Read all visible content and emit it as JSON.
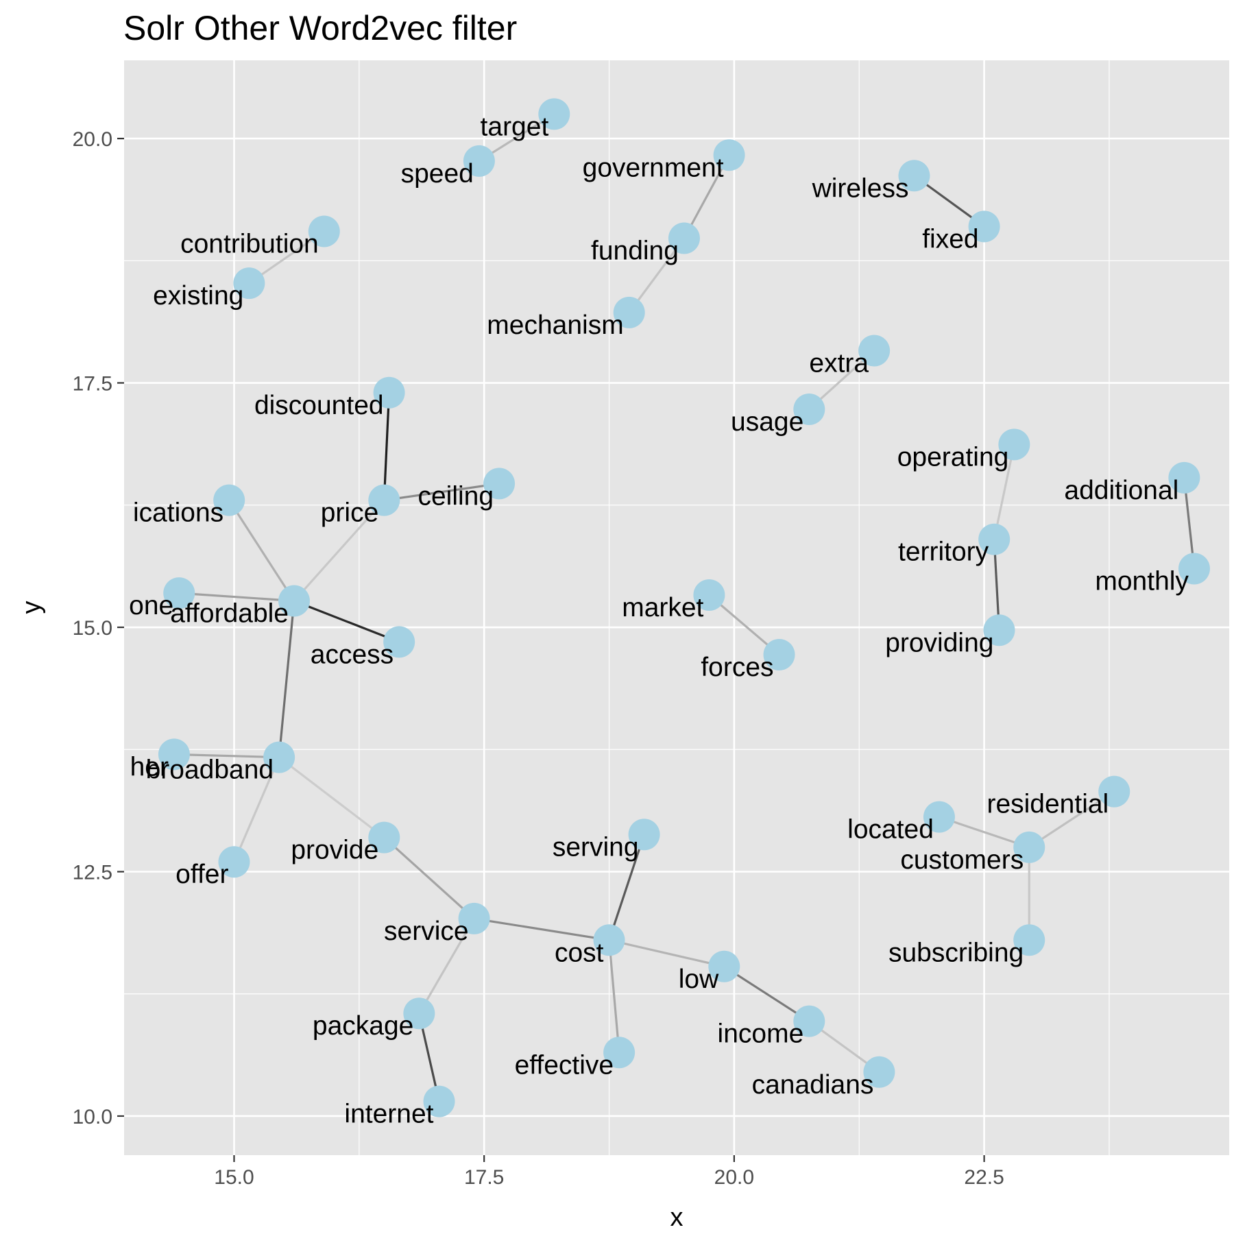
{
  "chart_data": {
    "type": "network",
    "title": "Solr Other Word2vec filter",
    "xlabel": "x",
    "ylabel": "y",
    "xlim": [
      13.9,
      24.95
    ],
    "ylim": [
      9.6,
      20.8
    ],
    "x_ticks": [
      "15.0",
      "17.5",
      "20.0",
      "22.5"
    ],
    "y_ticks": [
      "10.0",
      "12.5",
      "15.0",
      "17.5",
      "20.0"
    ],
    "grid": true,
    "colors": {
      "panel": "#e5e5e5",
      "grid": "#ffffff",
      "node": "#a4d1e3",
      "text": "#000000",
      "tick": "#4d4d4d"
    },
    "nodes": [
      {
        "label": "target",
        "x": 18.2,
        "y": 20.25
      },
      {
        "label": "speed",
        "x": 17.45,
        "y": 19.77
      },
      {
        "label": "government",
        "x": 19.95,
        "y": 19.83
      },
      {
        "label": "wireless",
        "x": 21.8,
        "y": 19.62
      },
      {
        "label": "fixed",
        "x": 22.5,
        "y": 19.1
      },
      {
        "label": "contribution",
        "x": 15.9,
        "y": 19.05
      },
      {
        "label": "funding",
        "x": 19.5,
        "y": 18.98
      },
      {
        "label": "existing",
        "x": 15.15,
        "y": 18.52
      },
      {
        "label": "mechanism",
        "x": 18.95,
        "y": 18.22
      },
      {
        "label": "extra",
        "x": 21.4,
        "y": 17.83
      },
      {
        "label": "discounted",
        "x": 16.55,
        "y": 17.4
      },
      {
        "label": "usage",
        "x": 20.75,
        "y": 17.23
      },
      {
        "label": "operating",
        "x": 22.8,
        "y": 16.87
      },
      {
        "label": "additional",
        "x": 24.5,
        "y": 16.53
      },
      {
        "label": "ceiling",
        "x": 17.65,
        "y": 16.47
      },
      {
        "label": "price",
        "x": 16.5,
        "y": 16.3
      },
      {
        "label": "ications",
        "x": 14.95,
        "y": 16.3
      },
      {
        "label": "territory",
        "x": 22.6,
        "y": 15.9
      },
      {
        "label": "monthly",
        "x": 24.6,
        "y": 15.6
      },
      {
        "label": "one",
        "x": 14.45,
        "y": 15.35
      },
      {
        "label": "market",
        "x": 19.75,
        "y": 15.33
      },
      {
        "label": "affordable",
        "x": 15.6,
        "y": 15.27
      },
      {
        "label": "providing",
        "x": 22.65,
        "y": 14.97
      },
      {
        "label": "access",
        "x": 16.65,
        "y": 14.85
      },
      {
        "label": "forces",
        "x": 20.45,
        "y": 14.72
      },
      {
        "label": "her",
        "x": 14.4,
        "y": 13.7
      },
      {
        "label": "broadband",
        "x": 15.45,
        "y": 13.67
      },
      {
        "label": "residential",
        "x": 23.8,
        "y": 13.32
      },
      {
        "label": "located",
        "x": 22.05,
        "y": 13.06
      },
      {
        "label": "serving",
        "x": 19.1,
        "y": 12.88
      },
      {
        "label": "provide",
        "x": 16.5,
        "y": 12.85
      },
      {
        "label": "customers",
        "x": 22.95,
        "y": 12.75
      },
      {
        "label": "offer",
        "x": 15.0,
        "y": 12.6
      },
      {
        "label": "service",
        "x": 17.4,
        "y": 12.02
      },
      {
        "label": "cost",
        "x": 18.75,
        "y": 11.8
      },
      {
        "label": "subscribing",
        "x": 22.95,
        "y": 11.8
      },
      {
        "label": "low",
        "x": 19.9,
        "y": 11.53
      },
      {
        "label": "package",
        "x": 16.85,
        "y": 11.05
      },
      {
        "label": "income",
        "x": 20.75,
        "y": 10.97
      },
      {
        "label": "effective",
        "x": 18.85,
        "y": 10.65
      },
      {
        "label": "canadians",
        "x": 21.45,
        "y": 10.45
      },
      {
        "label": "internet",
        "x": 17.05,
        "y": 10.15
      }
    ],
    "edges": [
      {
        "from": "target",
        "to": "speed",
        "shade": "#b8b8b8"
      },
      {
        "from": "government",
        "to": "funding",
        "shade": "#a8a8a8"
      },
      {
        "from": "funding",
        "to": "mechanism",
        "shade": "#c4c4c4"
      },
      {
        "from": "wireless",
        "to": "fixed",
        "shade": "#555555"
      },
      {
        "from": "contribution",
        "to": "existing",
        "shade": "#c6c6c6"
      },
      {
        "from": "extra",
        "to": "usage",
        "shade": "#c4c4c4"
      },
      {
        "from": "discounted",
        "to": "price",
        "shade": "#1e1e1e"
      },
      {
        "from": "price",
        "to": "ceiling",
        "shade": "#8a8a8a"
      },
      {
        "from": "price",
        "to": "affordable",
        "shade": "#c8c8c8"
      },
      {
        "from": "ications",
        "to": "affordable",
        "shade": "#b0b0b0"
      },
      {
        "from": "one",
        "to": "affordable",
        "shade": "#a0a0a0"
      },
      {
        "from": "affordable",
        "to": "access",
        "shade": "#2a2a2a"
      },
      {
        "from": "affordable",
        "to": "broadband",
        "shade": "#6e6e6e"
      },
      {
        "from": "operating",
        "to": "territory",
        "shade": "#c8c8c8"
      },
      {
        "from": "territory",
        "to": "providing",
        "shade": "#5a5a5a"
      },
      {
        "from": "additional",
        "to": "monthly",
        "shade": "#7a7a7a"
      },
      {
        "from": "market",
        "to": "forces",
        "shade": "#b0b0b0"
      },
      {
        "from": "her",
        "to": "broadband",
        "shade": "#a8a8a8"
      },
      {
        "from": "broadband",
        "to": "offer",
        "shade": "#c8c8c8"
      },
      {
        "from": "broadband",
        "to": "provide",
        "shade": "#cccccc"
      },
      {
        "from": "provide",
        "to": "service",
        "shade": "#a4a4a4"
      },
      {
        "from": "service",
        "to": "cost",
        "shade": "#8a8a8a"
      },
      {
        "from": "service",
        "to": "package",
        "shade": "#c4c4c4"
      },
      {
        "from": "package",
        "to": "internet",
        "shade": "#4a4a4a"
      },
      {
        "from": "serving",
        "to": "cost",
        "shade": "#5a5a5a"
      },
      {
        "from": "cost",
        "to": "low",
        "shade": "#b4b4b4"
      },
      {
        "from": "cost",
        "to": "effective",
        "shade": "#a8a8a8"
      },
      {
        "from": "low",
        "to": "income",
        "shade": "#7a7a7a"
      },
      {
        "from": "income",
        "to": "canadians",
        "shade": "#c4c4c4"
      },
      {
        "from": "located",
        "to": "customers",
        "shade": "#b8b8b8"
      },
      {
        "from": "residential",
        "to": "customers",
        "shade": "#c0c0c0"
      },
      {
        "from": "customers",
        "to": "subscribing",
        "shade": "#c8c8c8"
      }
    ]
  }
}
